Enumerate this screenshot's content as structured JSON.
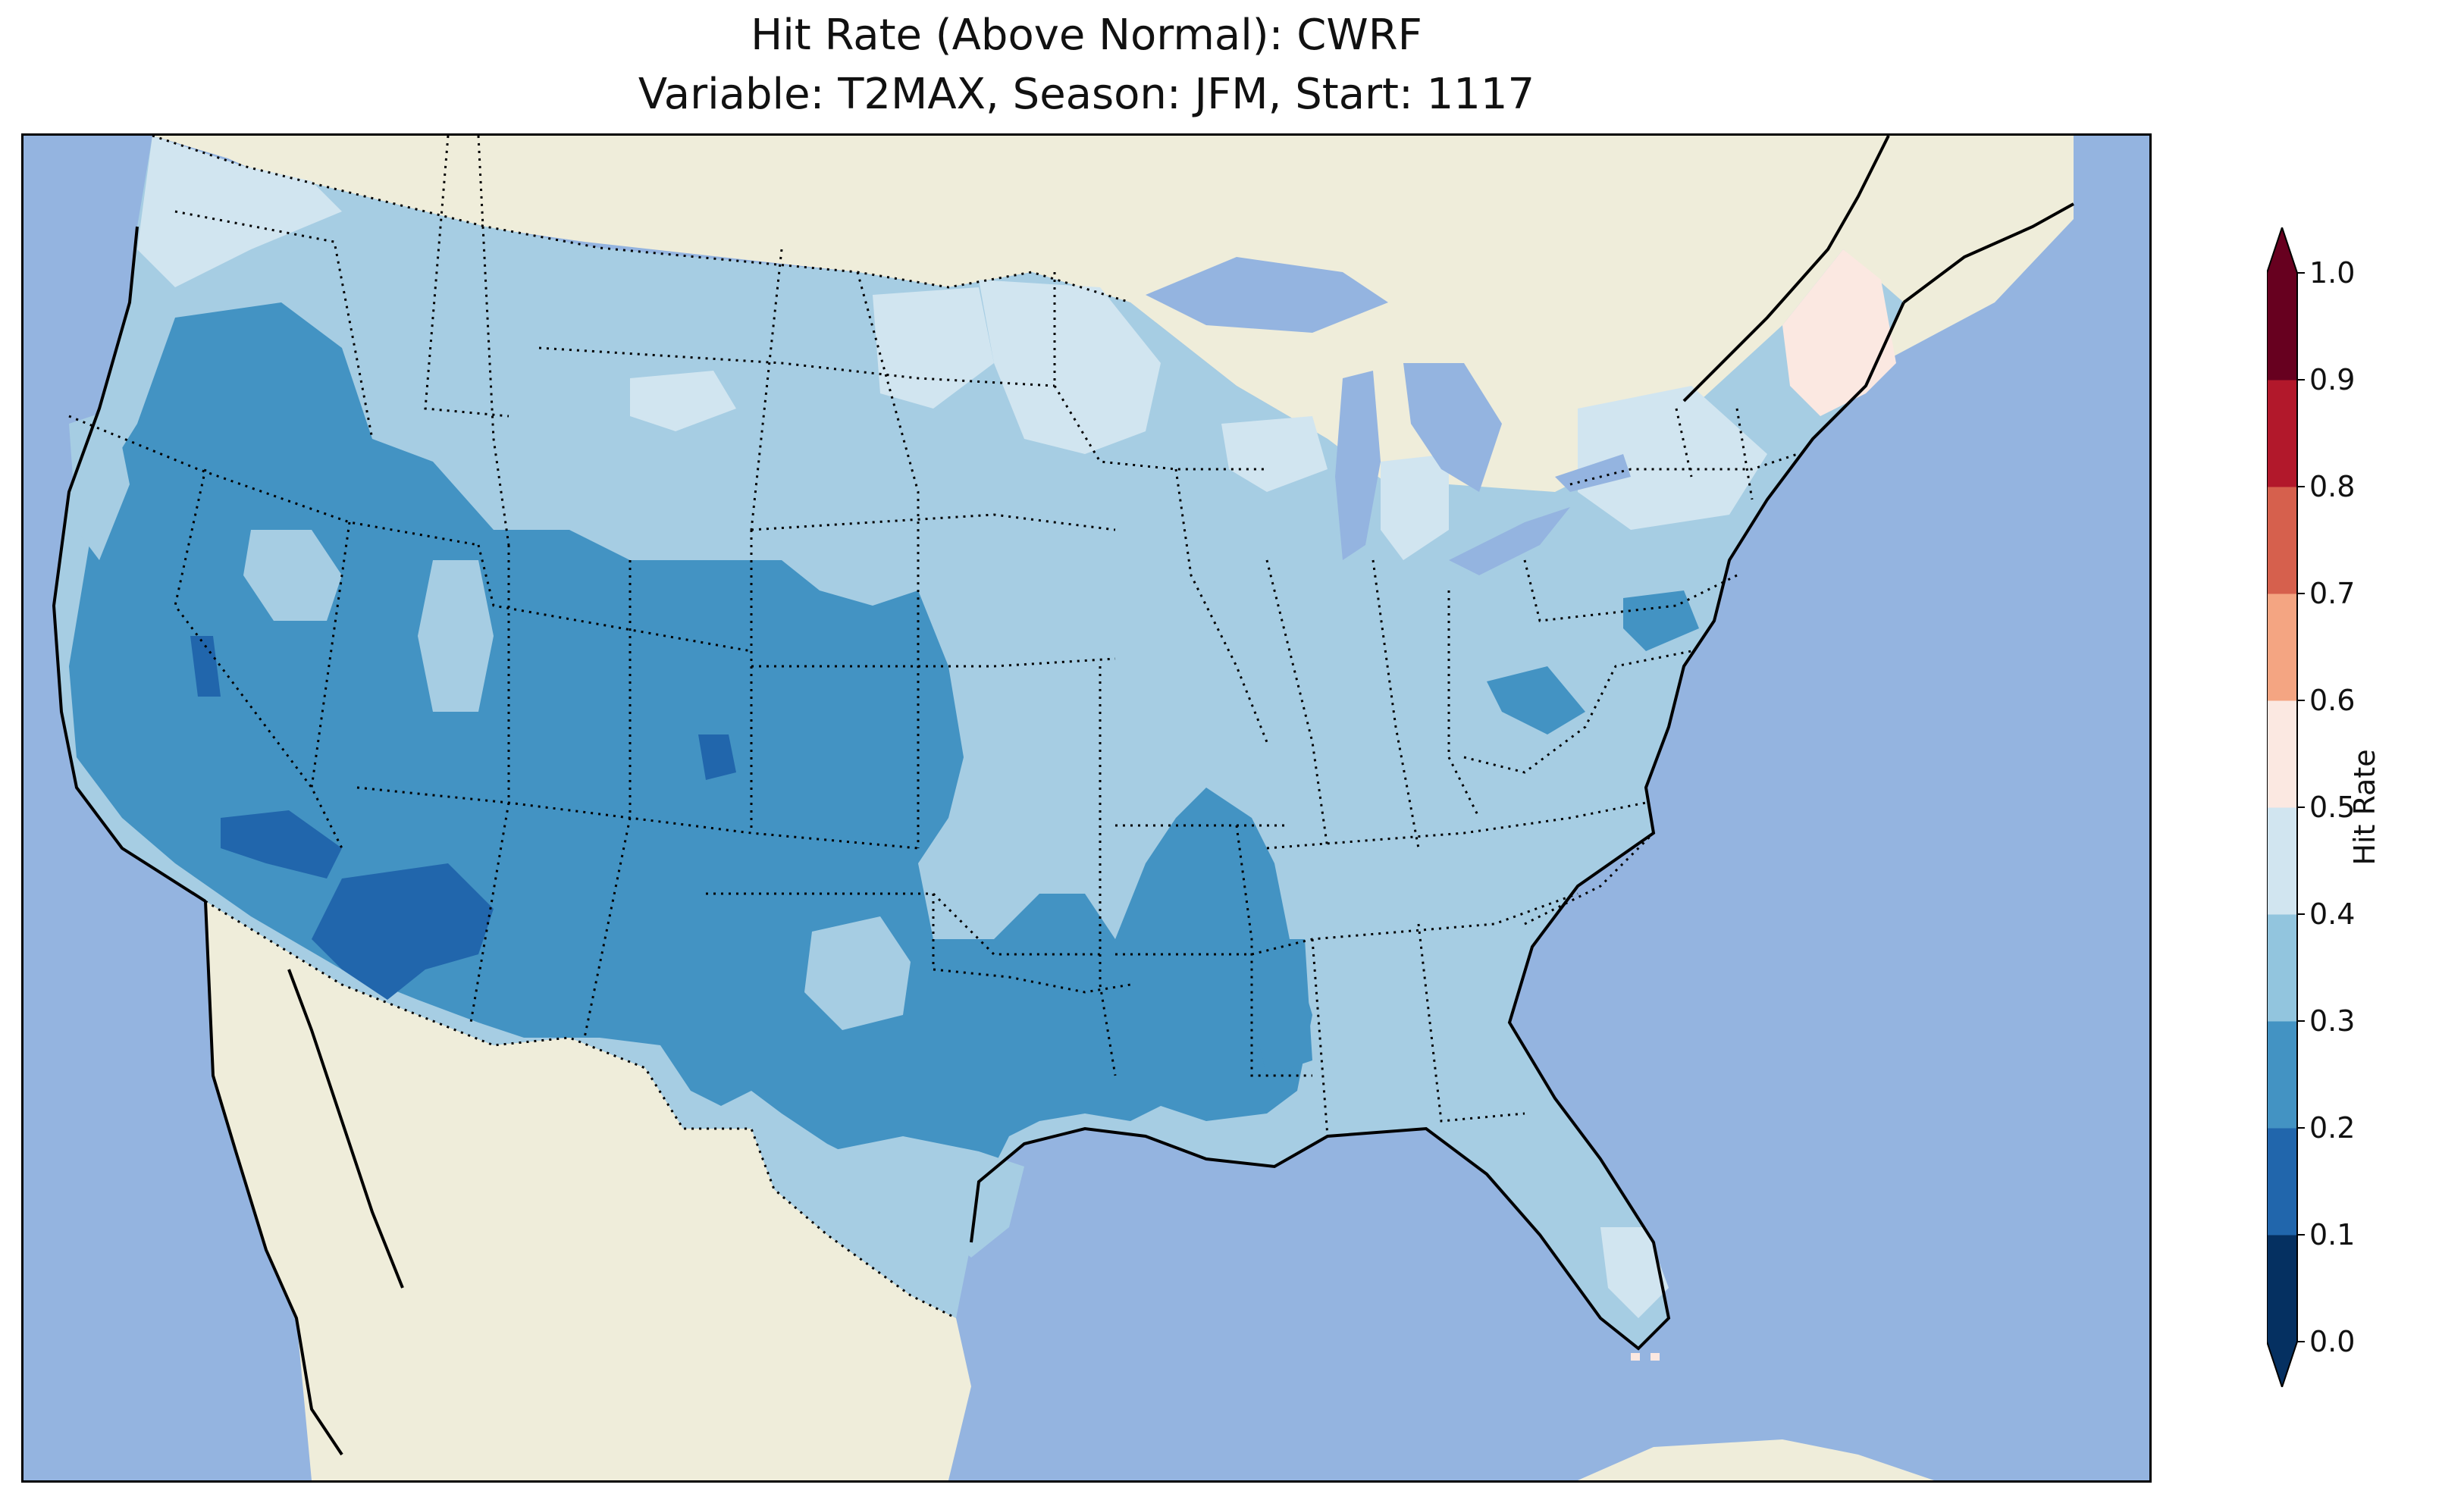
{
  "title": {
    "line1": "Hit Rate (Above Normal): CWRF",
    "line2": "Variable: T2MAX, Season: JFM, Start: 1117"
  },
  "map": {
    "region": "Contiguous United States",
    "ocean_color": "#94b4e0",
    "land_color": "#efedda",
    "borders": "dotted state boundaries, solid coastlines"
  },
  "colorbar": {
    "label": "Hit Rate",
    "ticks": [
      "0.0",
      "0.1",
      "0.2",
      "0.3",
      "0.4",
      "0.5",
      "0.6",
      "0.7",
      "0.8",
      "0.9",
      "1.0"
    ],
    "colors": [
      "#053061",
      "#2166ac",
      "#4393c3",
      "#92c5de",
      "#d1e5f0",
      "#fbe8e1",
      "#f4a582",
      "#d6604d",
      "#b2182b",
      "#67001f"
    ],
    "extend": "both"
  },
  "map_values": {
    "dominant_bins": [
      {
        "area": "Pacific Northwest interior",
        "range": "0.2-0.3"
      },
      {
        "area": "Northern Plains",
        "range": "0.3-0.4"
      },
      {
        "area": "Southwest / Colorado / Great Basin",
        "range": "0.2-0.3"
      },
      {
        "area": "Southern California / Arizona patches",
        "range": "0.1-0.2"
      },
      {
        "area": "Southeast / Midwest",
        "range": "0.3-0.4"
      },
      {
        "area": "New England / Upper Midwest patches",
        "range": "0.4-0.5"
      },
      {
        "area": "Maine",
        "range": "0.5-0.6"
      }
    ]
  }
}
